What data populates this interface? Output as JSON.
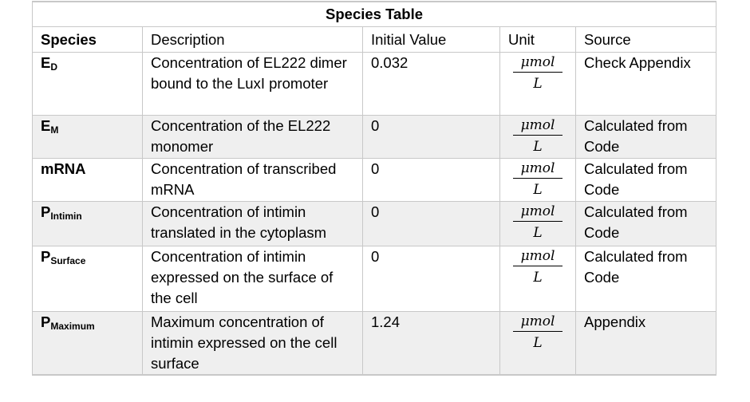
{
  "table": {
    "title": "Species Table",
    "headers": {
      "species": "Species",
      "description": "Description",
      "initial_value": "Initial Value",
      "unit": "Unit",
      "source": "Source"
    },
    "rows": [
      {
        "species_base": "E",
        "species_sub": "D",
        "description": "Concentration of EL222 dimer bound to the LuxI promoter",
        "initial_value": "0.032",
        "unit_num": "μmol",
        "unit_den": "L",
        "source": "Check Appendix"
      },
      {
        "species_base": "E",
        "species_sub": "M",
        "description": "Concentration of the EL222 monomer",
        "initial_value": "0",
        "unit_num": "μmol",
        "unit_den": "L",
        "source": "Calculated from Code"
      },
      {
        "species_base": "mRNA",
        "species_sub": "",
        "description": "Concentration of transcribed mRNA",
        "initial_value": "0",
        "unit_num": "μmol",
        "unit_den": "L",
        "source": "Calculated from Code"
      },
      {
        "species_base": "P",
        "species_sub": "Intimin",
        "description": "Concentration of intimin translated in the cytoplasm",
        "initial_value": "0",
        "unit_num": "μmol",
        "unit_den": "L",
        "source": "Calculated from Code"
      },
      {
        "species_base": "P",
        "species_sub": "Surface",
        "description": "Concentration of intimin expressed on the surface of the cell",
        "initial_value": "0",
        "unit_num": "μmol",
        "unit_den": "L",
        "source": "Calculated from Code"
      },
      {
        "species_base": "P",
        "species_sub": "Maximum",
        "description": "Maximum concentration of intimin expressed on the cell surface",
        "initial_value": "1.24",
        "unit_num": "μmol",
        "unit_den": "L",
        "source": "Appendix"
      }
    ]
  }
}
